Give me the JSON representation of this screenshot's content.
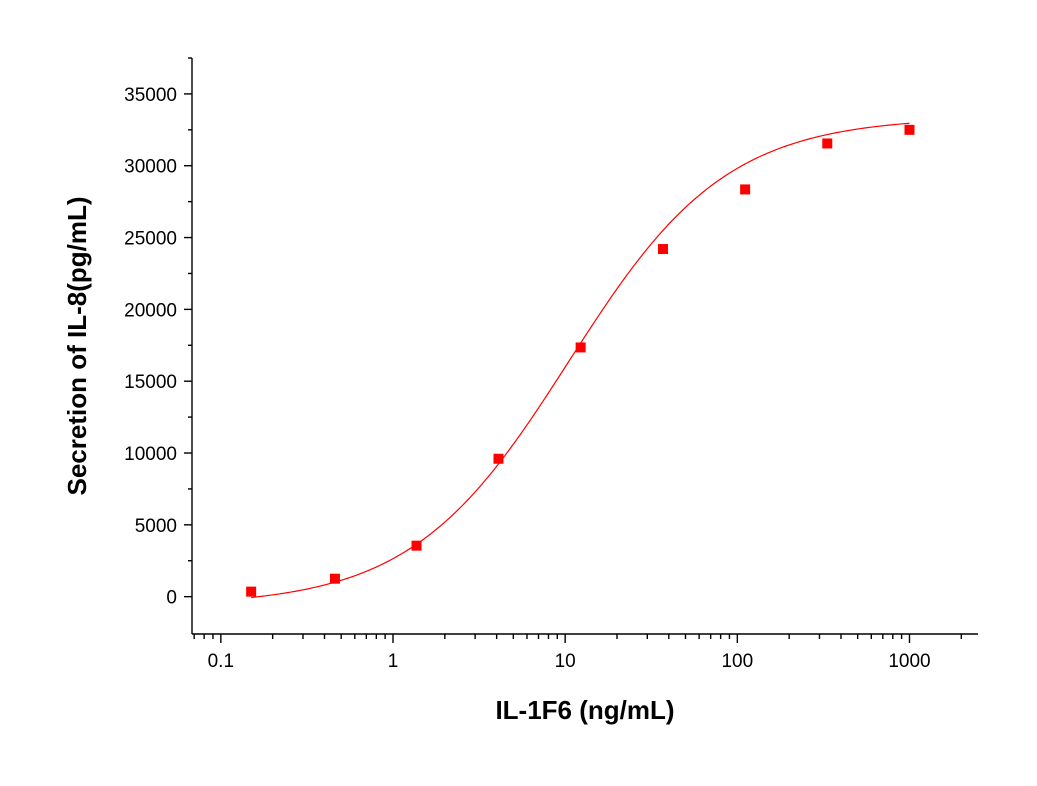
{
  "chart_data": {
    "type": "scatter",
    "xlabel": "IL-1F6 (ng/mL)",
    "ylabel": "Secretion of IL-8(pg/mL)",
    "xscale": "log",
    "xlim": [
      0.068,
      2500
    ],
    "ylim": [
      -2600,
      37500
    ],
    "xticks": [
      0.1,
      1,
      10,
      100,
      1000
    ],
    "xtick_labels": [
      "0.1",
      "1",
      "10",
      "100",
      "1000"
    ],
    "yticks": [
      0,
      5000,
      10000,
      15000,
      20000,
      25000,
      30000,
      35000
    ],
    "ytick_labels": [
      "0",
      "5000",
      "10000",
      "15000",
      "20000",
      "25000",
      "30000",
      "35000"
    ],
    "grid": false,
    "legend": "none",
    "marker_color": "#ff0000",
    "curve_color": "#ff0000",
    "series": [
      {
        "x": [
          0.15,
          0.46,
          1.37,
          4.1,
          12.3,
          37,
          111,
          333,
          1000
        ],
        "y": [
          350,
          1250,
          3550,
          9600,
          17350,
          24200,
          28350,
          31550,
          32500
        ]
      }
    ],
    "fit_curve": {
      "model": "4PL",
      "bottom": -650,
      "top": 33400,
      "ec50": 10.5,
      "hill": 0.95
    }
  }
}
